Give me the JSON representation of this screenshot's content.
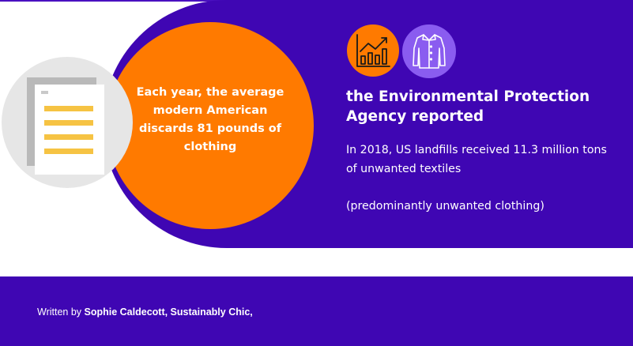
{
  "infographic": {
    "circle_text": "Each year, the average modern American discards 81 pounds of clothing",
    "headline": "the Environmental Protection Agency reported",
    "body_line1": "In 2018, US landfills received 11.3 million tons of unwanted textiles",
    "body_line2": "(predominantly unwanted clothing)",
    "icons": [
      "document-icon",
      "growth-chart-icon",
      "shirt-icon"
    ]
  },
  "footer": {
    "written_by": "Written by ",
    "author": "Sophie Caldecott, Sustainably Chic,"
  },
  "colors": {
    "purple": "#3f06b3",
    "orange": "#ff7a00",
    "light_purple": "#8a5cf0",
    "doc_lines": "#f6c343"
  }
}
